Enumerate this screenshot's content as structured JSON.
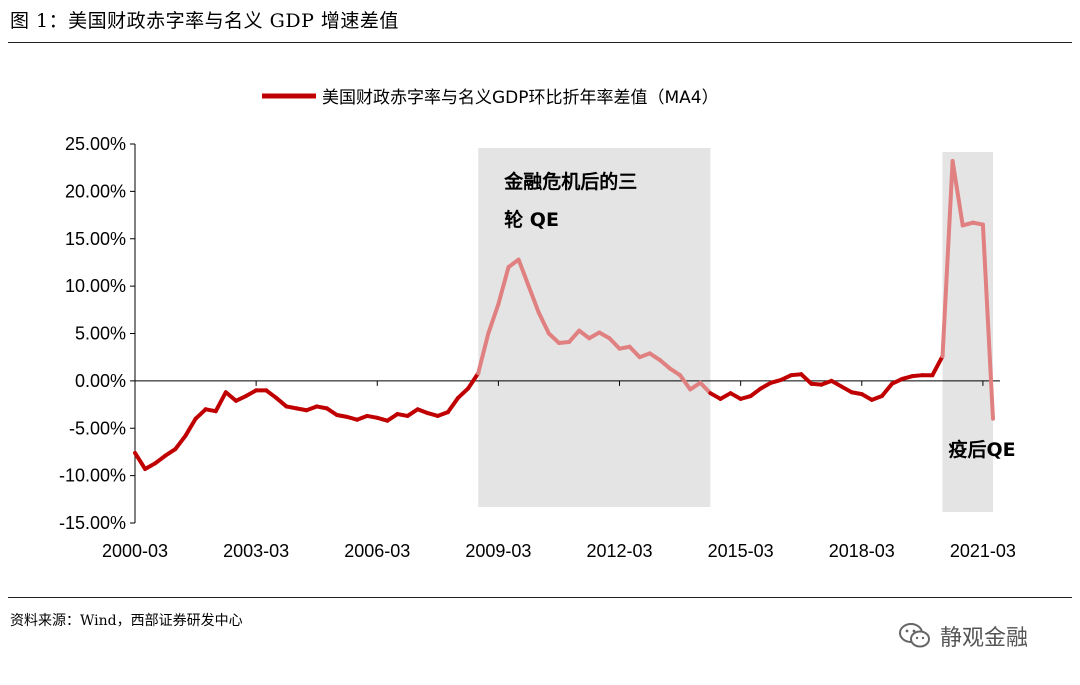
{
  "figure": {
    "title": "图 1：美国财政赤字率与名义 GDP 增速差值",
    "source": "资料来源：Wind，西部证券研发中心",
    "watermark": "静观金融",
    "watermark_icon": "wechat-icon"
  },
  "chart_data": {
    "type": "line",
    "legend": "美国财政赤字率与名义GDP环比折年率差值（MA4）",
    "legend_position": "top-center",
    "line_color": "#c00000",
    "highlight_line_color": "#e08080",
    "shade_color": "#e4e4e4",
    "y_ticks": [
      "25.00%",
      "20.00%",
      "15.00%",
      "10.00%",
      "5.00%",
      "0.00%",
      "-5.00%",
      "-10.00%",
      "-15.00%"
    ],
    "ylim": [
      -15,
      25
    ],
    "x_ticks": [
      "2000-03",
      "2003-03",
      "2006-03",
      "2009-03",
      "2012-03",
      "2015-03",
      "2018-03",
      "2021-03"
    ],
    "x_start": "2000-03",
    "x_end": "2021-06",
    "regions": [
      {
        "label_line1": "金融危机后的三",
        "label_line2": "轮 QE",
        "start": "2008-09",
        "end": "2014-06"
      },
      {
        "label_line1": "疫后QE",
        "label_line2": "",
        "start": "2020-03",
        "end": "2021-06"
      }
    ],
    "series": [
      {
        "name": "美国财政赤字率与名义GDP环比折年率差值（MA4）",
        "values": [
          -7.6,
          -9.3,
          -8.7,
          -7.9,
          -7.2,
          -5.8,
          -4.0,
          -3.0,
          -3.2,
          -1.2,
          -2.1,
          -1.6,
          -1.0,
          -1.0,
          -1.8,
          -2.7,
          -2.9,
          -3.1,
          -2.7,
          -2.9,
          -3.6,
          -3.8,
          -4.1,
          -3.7,
          -3.9,
          -4.2,
          -3.5,
          -3.7,
          -3.0,
          -3.4,
          -3.7,
          -3.3,
          -1.8,
          -0.8,
          0.8,
          5.0,
          8.1,
          12.0,
          12.8,
          10.0,
          7.2,
          5.0,
          4.0,
          4.1,
          5.3,
          4.5,
          5.1,
          4.5,
          3.4,
          3.6,
          2.5,
          2.9,
          2.2,
          1.3,
          0.6,
          -0.9,
          -0.2,
          -1.3,
          -1.9,
          -1.3,
          -1.9,
          -1.6,
          -0.8,
          -0.2,
          0.1,
          0.6,
          0.7,
          -0.3,
          -0.4,
          0.0,
          -0.6,
          -1.2,
          -1.4,
          -2.0,
          -1.6,
          -0.3,
          0.2,
          0.5,
          0.6,
          0.6,
          2.6,
          23.2,
          16.4,
          16.7,
          16.5,
          -4.0
        ]
      }
    ]
  }
}
